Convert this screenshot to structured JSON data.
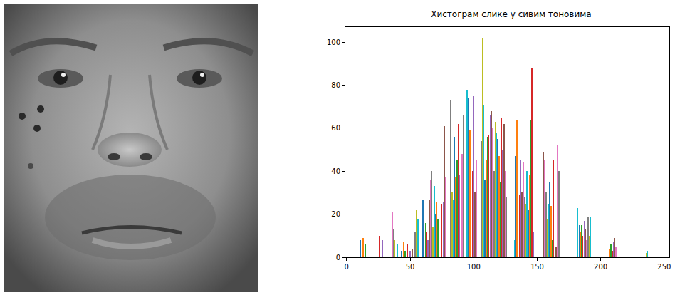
{
  "chart_data": {
    "type": "bar",
    "title": "Хистограм слике у сивим тоновима",
    "x": [
      11,
      13,
      15,
      26,
      28,
      30,
      36,
      37,
      38,
      40,
      43,
      45,
      46,
      48,
      50,
      52,
      53,
      54,
      55,
      56,
      60,
      61,
      62,
      63,
      64,
      65,
      66,
      67,
      68,
      69,
      70,
      71,
      72,
      75,
      76,
      77,
      78,
      82,
      83,
      84,
      85,
      86,
      87,
      88,
      89,
      90,
      91,
      92,
      94,
      95,
      96,
      97,
      98,
      99,
      100,
      101,
      102,
      106,
      107,
      108,
      109,
      110,
      111,
      112,
      113,
      114,
      115,
      116,
      117,
      118,
      119,
      120,
      121,
      122,
      123,
      124,
      125,
      126,
      127,
      132,
      133,
      134,
      135,
      136,
      137,
      138,
      139,
      140,
      141,
      142,
      143,
      144,
      145,
      146,
      147,
      155,
      156,
      157,
      158,
      159,
      160,
      161,
      162,
      163,
      164,
      165,
      166,
      167,
      168,
      182,
      183,
      184,
      185,
      186,
      187,
      188,
      189,
      190,
      191,
      192,
      205,
      207,
      208,
      209,
      210,
      211,
      212,
      234,
      236,
      237
    ],
    "values": [
      8,
      9,
      6,
      10,
      8,
      4,
      21,
      13,
      8,
      6,
      3,
      7,
      3,
      6,
      3,
      4,
      9,
      12,
      22,
      18,
      27,
      26,
      16,
      12,
      8,
      27,
      36,
      40,
      14,
      33,
      20,
      26,
      18,
      25,
      26,
      61,
      37,
      73,
      30,
      27,
      56,
      37,
      45,
      62,
      38,
      57,
      48,
      66,
      76,
      78,
      74,
      59,
      45,
      40,
      75,
      30,
      45,
      54,
      102,
      71,
      36,
      45,
      56,
      57,
      66,
      68,
      60,
      40,
      63,
      58,
      55,
      47,
      35,
      65,
      50,
      62,
      40,
      28,
      29,
      8,
      47,
      64,
      46,
      29,
      45,
      30,
      44,
      28,
      25,
      40,
      22,
      38,
      64,
      88,
      12,
      49,
      45,
      30,
      18,
      25,
      35,
      24,
      8,
      45,
      10,
      5,
      52,
      40,
      32,
      23,
      15,
      12,
      15,
      10,
      17,
      13,
      8,
      19,
      10,
      19,
      2,
      4,
      6,
      3,
      7,
      9,
      5,
      3,
      2,
      3
    ],
    "colors": [
      "#1f77b4",
      "#ff7f0e",
      "#2ca02c",
      "#d62728",
      "#9467bd",
      "#8c564b",
      "#e377c2",
      "#7f7f7f",
      "#bcbd22",
      "#17becf",
      "#1f77b4",
      "#ff7f0e",
      "#2ca02c",
      "#d62728",
      "#9467bd",
      "#8c564b",
      "#e377c2",
      "#7f7f7f",
      "#bcbd22",
      "#17becf",
      "#1f77b4",
      "#ff7f0e",
      "#2ca02c",
      "#d62728",
      "#9467bd",
      "#8c564b",
      "#e377c2",
      "#7f7f7f",
      "#bcbd22",
      "#17becf",
      "#1f77b4",
      "#ff7f0e",
      "#2ca02c",
      "#d62728",
      "#9467bd",
      "#8c564b",
      "#e377c2",
      "#7f7f7f",
      "#bcbd22",
      "#17becf",
      "#1f77b4",
      "#ff7f0e",
      "#2ca02c",
      "#d62728",
      "#9467bd",
      "#8c564b",
      "#e377c2",
      "#7f7f7f",
      "#bcbd22",
      "#17becf",
      "#1f77b4",
      "#ff7f0e",
      "#2ca02c",
      "#d62728",
      "#9467bd",
      "#8c564b",
      "#e377c2",
      "#7f7f7f",
      "#bcbd22",
      "#17becf",
      "#1f77b4",
      "#ff7f0e",
      "#2ca02c",
      "#d62728",
      "#9467bd",
      "#8c564b",
      "#e377c2",
      "#7f7f7f",
      "#bcbd22",
      "#17becf",
      "#1f77b4",
      "#ff7f0e",
      "#2ca02c",
      "#d62728",
      "#9467bd",
      "#8c564b",
      "#e377c2",
      "#7f7f7f",
      "#bcbd22",
      "#17becf",
      "#1f77b4",
      "#ff7f0e",
      "#2ca02c",
      "#d62728",
      "#9467bd",
      "#8c564b",
      "#e377c2",
      "#7f7f7f",
      "#bcbd22",
      "#17becf",
      "#1f77b4",
      "#ff7f0e",
      "#2ca02c",
      "#d62728",
      "#9467bd",
      "#8c564b",
      "#e377c2",
      "#7f7f7f",
      "#bcbd22",
      "#17becf",
      "#1f77b4",
      "#ff7f0e",
      "#2ca02c",
      "#d62728",
      "#9467bd",
      "#8c564b",
      "#e377c2",
      "#7f7f7f",
      "#bcbd22",
      "#17becf",
      "#1f77b4",
      "#ff7f0e",
      "#2ca02c",
      "#d62728",
      "#9467bd",
      "#8c564b",
      "#e377c2",
      "#7f7f7f",
      "#bcbd22",
      "#17becf",
      "#1f77b4",
      "#ff7f0e",
      "#2ca02c",
      "#d62728",
      "#9467bd",
      "#8c564b",
      "#e377c2",
      "#7f7f7f",
      "#bcbd22",
      "#17becf"
    ],
    "xlim": [
      -1,
      254
    ],
    "xticks": [
      0,
      50,
      100,
      150,
      200,
      250
    ],
    "ylim": [
      0,
      107
    ],
    "yticks": [
      0,
      20,
      40,
      60,
      80,
      100
    ],
    "grid": false
  }
}
